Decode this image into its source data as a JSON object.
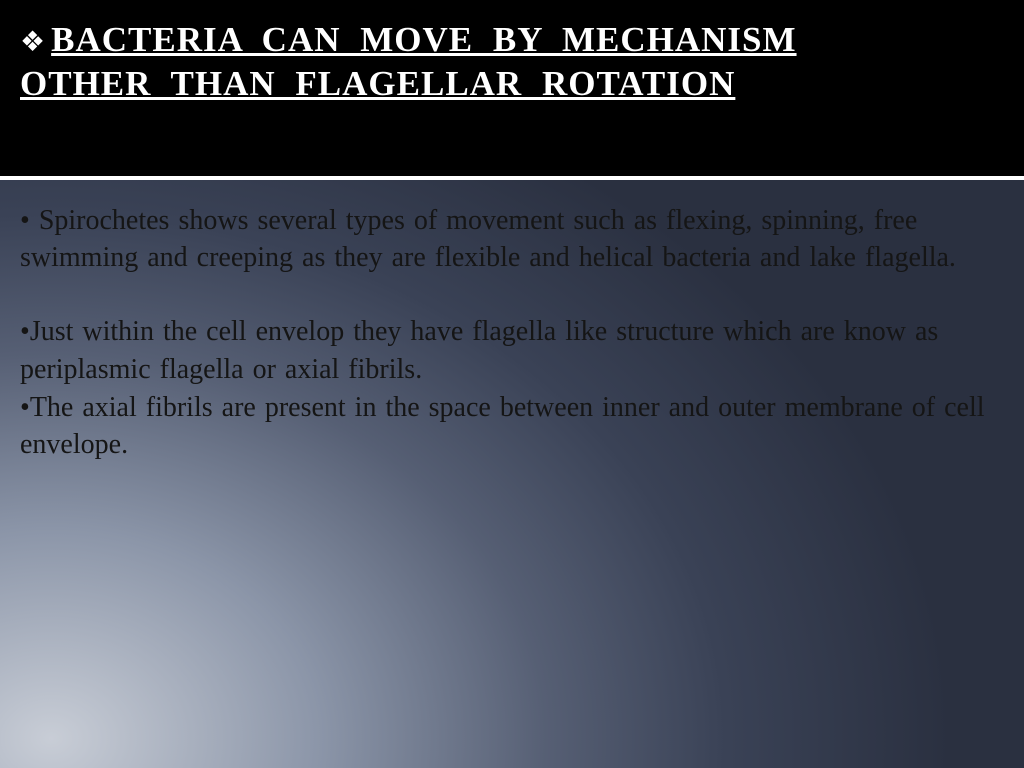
{
  "slide": {
    "title_line1": "BACTERIA  CAN  MOVE  BY  MECHANISM",
    "title_line2": "OTHER  THAN  FLAGELLAR  ROTATION",
    "title_color": "#ffffff",
    "title_fontsize": 35,
    "title_bg": "#000000",
    "body_bg_gradient_from": "#c8cdd6",
    "body_bg_gradient_to": "#2a3040",
    "body_text_color": "#151515",
    "body_fontsize": 28,
    "paragraphs": [
      " Spirochetes shows several types of movement such as flexing, spinning, free swimming and creeping as they are flexible and helical bacteria and lake flagella.",
      "Just within the cell envelop they have flagella like structure which are know as periplasmic flagella or axial fibrils.",
      "The axial fibrils are present in the space between inner and outer membrane of cell envelope."
    ]
  }
}
